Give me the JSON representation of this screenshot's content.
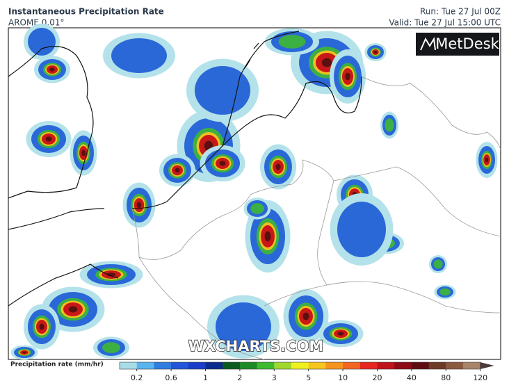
{
  "header": {
    "title": "Instantaneous Precipitation Rate",
    "model": "AROME 0.01°",
    "run": "Run: Tue 27 Jul 00Z",
    "valid": "Valid: Tue 27 Jul 15:00 UTC"
  },
  "logo": "MetDesk",
  "watermark": "WXCHARTS.COM",
  "legend": {
    "label": "Precipitation rate (mm/hr)",
    "ticks": [
      "0.2",
      "0.6",
      "1",
      "2",
      "3",
      "5",
      "10",
      "20",
      "40",
      "80",
      "120"
    ],
    "colors": [
      "#a8dde8",
      "#5ab4ef",
      "#2f7de0",
      "#2255d8",
      "#1a3ec9",
      "#0c2a8e",
      "#0b5a1d",
      "#1e8a27",
      "#3cbb2f",
      "#a0d82c",
      "#f0f020",
      "#f7c51d",
      "#f7941d",
      "#f26522",
      "#e8251f",
      "#c0121a",
      "#8e0b14",
      "#5e0c10",
      "#6d3a26",
      "#8a5a40",
      "#a88468",
      "#4a3c3c"
    ]
  }
}
